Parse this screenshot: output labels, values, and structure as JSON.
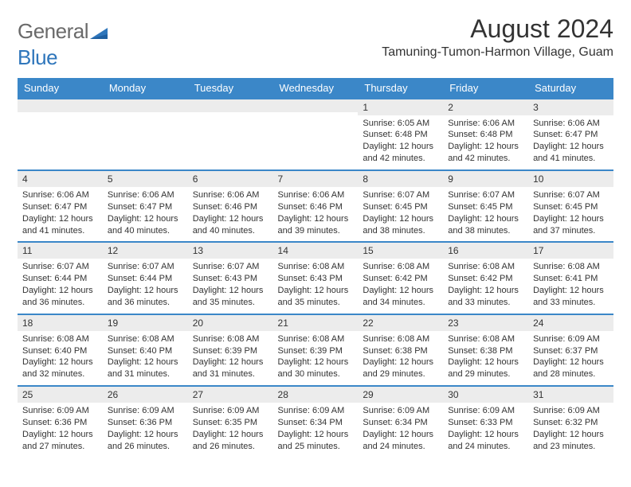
{
  "logo": {
    "part1": "General",
    "part2": "Blue"
  },
  "title": "August 2024",
  "location": "Tamuning-Tumon-Harmon Village, Guam",
  "colors": {
    "header_bg": "#3b87c8",
    "header_text": "#ffffff",
    "daynum_bg": "#ececec",
    "border_top": "#3b87c8",
    "text": "#333333",
    "logo_gray": "#6a6a6a",
    "logo_blue": "#2f76bb",
    "background": "#ffffff"
  },
  "weekdays": [
    "Sunday",
    "Monday",
    "Tuesday",
    "Wednesday",
    "Thursday",
    "Friday",
    "Saturday"
  ],
  "weeks": [
    [
      {
        "empty": true
      },
      {
        "empty": true
      },
      {
        "empty": true
      },
      {
        "empty": true
      },
      {
        "day": "1",
        "sunrise": "Sunrise: 6:05 AM",
        "sunset": "Sunset: 6:48 PM",
        "daylight": "Daylight: 12 hours and 42 minutes."
      },
      {
        "day": "2",
        "sunrise": "Sunrise: 6:06 AM",
        "sunset": "Sunset: 6:48 PM",
        "daylight": "Daylight: 12 hours and 42 minutes."
      },
      {
        "day": "3",
        "sunrise": "Sunrise: 6:06 AM",
        "sunset": "Sunset: 6:47 PM",
        "daylight": "Daylight: 12 hours and 41 minutes."
      }
    ],
    [
      {
        "day": "4",
        "sunrise": "Sunrise: 6:06 AM",
        "sunset": "Sunset: 6:47 PM",
        "daylight": "Daylight: 12 hours and 41 minutes."
      },
      {
        "day": "5",
        "sunrise": "Sunrise: 6:06 AM",
        "sunset": "Sunset: 6:47 PM",
        "daylight": "Daylight: 12 hours and 40 minutes."
      },
      {
        "day": "6",
        "sunrise": "Sunrise: 6:06 AM",
        "sunset": "Sunset: 6:46 PM",
        "daylight": "Daylight: 12 hours and 40 minutes."
      },
      {
        "day": "7",
        "sunrise": "Sunrise: 6:06 AM",
        "sunset": "Sunset: 6:46 PM",
        "daylight": "Daylight: 12 hours and 39 minutes."
      },
      {
        "day": "8",
        "sunrise": "Sunrise: 6:07 AM",
        "sunset": "Sunset: 6:45 PM",
        "daylight": "Daylight: 12 hours and 38 minutes."
      },
      {
        "day": "9",
        "sunrise": "Sunrise: 6:07 AM",
        "sunset": "Sunset: 6:45 PM",
        "daylight": "Daylight: 12 hours and 38 minutes."
      },
      {
        "day": "10",
        "sunrise": "Sunrise: 6:07 AM",
        "sunset": "Sunset: 6:45 PM",
        "daylight": "Daylight: 12 hours and 37 minutes."
      }
    ],
    [
      {
        "day": "11",
        "sunrise": "Sunrise: 6:07 AM",
        "sunset": "Sunset: 6:44 PM",
        "daylight": "Daylight: 12 hours and 36 minutes."
      },
      {
        "day": "12",
        "sunrise": "Sunrise: 6:07 AM",
        "sunset": "Sunset: 6:44 PM",
        "daylight": "Daylight: 12 hours and 36 minutes."
      },
      {
        "day": "13",
        "sunrise": "Sunrise: 6:07 AM",
        "sunset": "Sunset: 6:43 PM",
        "daylight": "Daylight: 12 hours and 35 minutes."
      },
      {
        "day": "14",
        "sunrise": "Sunrise: 6:08 AM",
        "sunset": "Sunset: 6:43 PM",
        "daylight": "Daylight: 12 hours and 35 minutes."
      },
      {
        "day": "15",
        "sunrise": "Sunrise: 6:08 AM",
        "sunset": "Sunset: 6:42 PM",
        "daylight": "Daylight: 12 hours and 34 minutes."
      },
      {
        "day": "16",
        "sunrise": "Sunrise: 6:08 AM",
        "sunset": "Sunset: 6:42 PM",
        "daylight": "Daylight: 12 hours and 33 minutes."
      },
      {
        "day": "17",
        "sunrise": "Sunrise: 6:08 AM",
        "sunset": "Sunset: 6:41 PM",
        "daylight": "Daylight: 12 hours and 33 minutes."
      }
    ],
    [
      {
        "day": "18",
        "sunrise": "Sunrise: 6:08 AM",
        "sunset": "Sunset: 6:40 PM",
        "daylight": "Daylight: 12 hours and 32 minutes."
      },
      {
        "day": "19",
        "sunrise": "Sunrise: 6:08 AM",
        "sunset": "Sunset: 6:40 PM",
        "daylight": "Daylight: 12 hours and 31 minutes."
      },
      {
        "day": "20",
        "sunrise": "Sunrise: 6:08 AM",
        "sunset": "Sunset: 6:39 PM",
        "daylight": "Daylight: 12 hours and 31 minutes."
      },
      {
        "day": "21",
        "sunrise": "Sunrise: 6:08 AM",
        "sunset": "Sunset: 6:39 PM",
        "daylight": "Daylight: 12 hours and 30 minutes."
      },
      {
        "day": "22",
        "sunrise": "Sunrise: 6:08 AM",
        "sunset": "Sunset: 6:38 PM",
        "daylight": "Daylight: 12 hours and 29 minutes."
      },
      {
        "day": "23",
        "sunrise": "Sunrise: 6:08 AM",
        "sunset": "Sunset: 6:38 PM",
        "daylight": "Daylight: 12 hours and 29 minutes."
      },
      {
        "day": "24",
        "sunrise": "Sunrise: 6:09 AM",
        "sunset": "Sunset: 6:37 PM",
        "daylight": "Daylight: 12 hours and 28 minutes."
      }
    ],
    [
      {
        "day": "25",
        "sunrise": "Sunrise: 6:09 AM",
        "sunset": "Sunset: 6:36 PM",
        "daylight": "Daylight: 12 hours and 27 minutes."
      },
      {
        "day": "26",
        "sunrise": "Sunrise: 6:09 AM",
        "sunset": "Sunset: 6:36 PM",
        "daylight": "Daylight: 12 hours and 26 minutes."
      },
      {
        "day": "27",
        "sunrise": "Sunrise: 6:09 AM",
        "sunset": "Sunset: 6:35 PM",
        "daylight": "Daylight: 12 hours and 26 minutes."
      },
      {
        "day": "28",
        "sunrise": "Sunrise: 6:09 AM",
        "sunset": "Sunset: 6:34 PM",
        "daylight": "Daylight: 12 hours and 25 minutes."
      },
      {
        "day": "29",
        "sunrise": "Sunrise: 6:09 AM",
        "sunset": "Sunset: 6:34 PM",
        "daylight": "Daylight: 12 hours and 24 minutes."
      },
      {
        "day": "30",
        "sunrise": "Sunrise: 6:09 AM",
        "sunset": "Sunset: 6:33 PM",
        "daylight": "Daylight: 12 hours and 24 minutes."
      },
      {
        "day": "31",
        "sunrise": "Sunrise: 6:09 AM",
        "sunset": "Sunset: 6:32 PM",
        "daylight": "Daylight: 12 hours and 23 minutes."
      }
    ]
  ]
}
